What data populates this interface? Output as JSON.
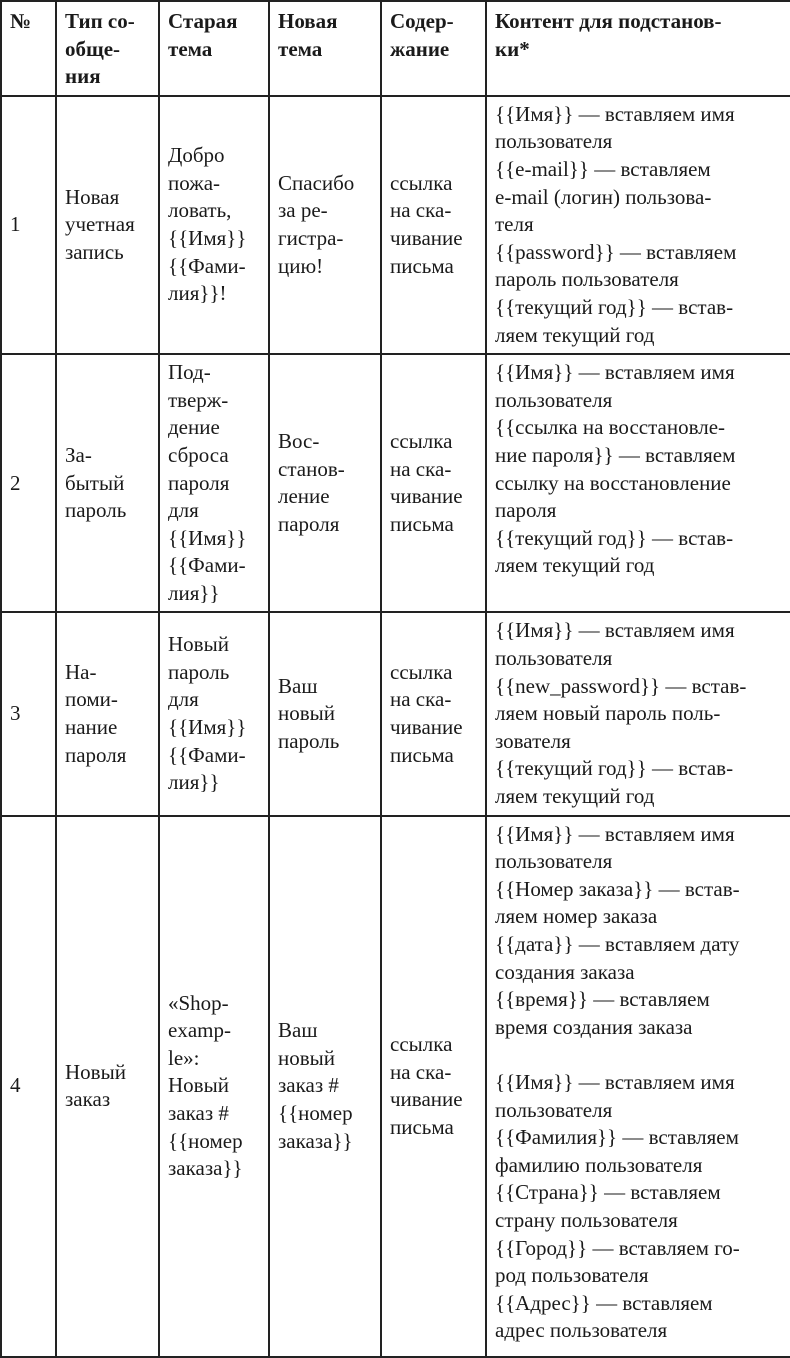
{
  "headers": [
    "№",
    "Тип со-\nобще-\nния",
    "Старая\nтема",
    "Новая\nтема",
    "Содер-\nжание",
    "Контент для подстанов-\nки*"
  ],
  "rows": [
    {
      "num": "1",
      "type": "Новая\nучетная\nзапись",
      "old_subject": "Добро\nпожа-\nловать,\n{{Имя}}\n{{Фами-\nлия}}!",
      "new_subject": "Спасибо\nза ре-\nгистра-\nцию!",
      "contents": "ссылка\nна ска-\nчивание\nписьма",
      "placeholders": "{{Имя}} — вставляем имя\nпользователя\n{{e-mail}} — вставляем\ne-mail (логин) пользова-\nтеля\n{{password}} — вставляем\nпароль пользователя\n{{текущий год}} — встав-\nляем текущий год"
    },
    {
      "num": "2",
      "type": "За-\nбытый\nпароль",
      "old_subject": "Под-\nтверж-\nдение\nсброса\nпароля\nдля\n{{Имя}}\n{{Фами-\nлия}}",
      "new_subject": "Вос-\nстанов-\nление\nпароля",
      "contents": "ссылка\nна ска-\nчивание\nписьма",
      "placeholders": "{{Имя}} — вставляем имя\nпользователя\n{{ссылка на восстановле-\nние пароля}} — вставляем\nссылку на восстановление\nпароля\n{{текущий год}} — встав-\nляем текущий год"
    },
    {
      "num": "3",
      "type": "На-\nпоми-\nнание\nпароля",
      "old_subject": "Новый\nпароль\nдля\n{{Имя}}\n{{Фами-\nлия}}",
      "new_subject": "Ваш\nновый\nпароль",
      "contents": "ссылка\nна ска-\nчивание\nписьма",
      "placeholders": "{{Имя}} — вставляем имя\nпользователя\n{{new_password}} — встав-\nляем новый пароль поль-\nзователя\n{{текущий год}} — встав-\nляем текущий год"
    },
    {
      "num": "4",
      "type": "Новый\nзаказ",
      "old_subject": "«Shop-\nexamp-\nle»:\nНовый\nзаказ #\n{{номер\nзаказа}}",
      "new_subject": "Ваш\nновый\nзаказ #\n{{номер\nзаказа}}",
      "contents": "ссылка\nна ска-\nчивание\nписьма",
      "placeholders": "{{Имя}} — вставляем имя\nпользователя\n{{Номер заказа}} — встав-\nляем номер заказа\n{{дата}} — вставляем дату\nсоздания заказа\n{{время}} — вставляем\nвремя создания заказа\n\n{{Имя}} — вставляем имя\nпользователя\n{{Фамилия}} — вставляем\nфамилию пользователя\n{{Страна}} — вставляем\nстрану пользователя\n{{Город}} — вставляем го-\nрод пользователя\n{{Адрес}} — вставляем\nадрес пользователя"
    }
  ]
}
